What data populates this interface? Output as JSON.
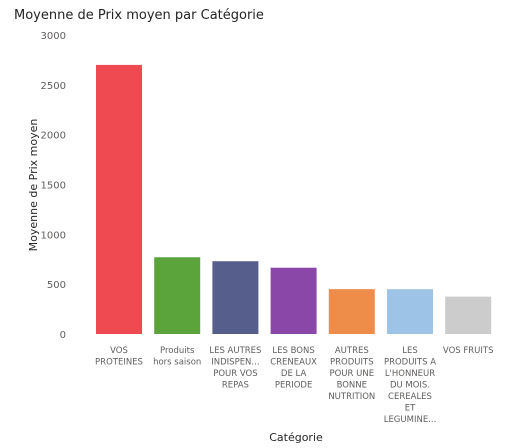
{
  "chart_data": {
    "type": "bar",
    "title": "Moyenne de Prix moyen par Catégorie",
    "xlabel": "Catégorie",
    "ylabel": "Moyenne de Prix moyen",
    "ylim": [
      0,
      3000
    ],
    "yticks": [
      0,
      500,
      1000,
      1500,
      2000,
      2500,
      3000
    ],
    "grid": false,
    "categories": [
      [
        "VOS",
        "PROTEINES"
      ],
      [
        "Produits",
        "hors saison"
      ],
      [
        "LES AUTRES",
        "INDISPEN...",
        "POUR VOS",
        "REPAS"
      ],
      [
        "LES BONS",
        "CRENEAUX",
        "DE LA",
        "PERIODE"
      ],
      [
        "AUTRES",
        "PRODUITS",
        "POUR UNE",
        "BONNE",
        "NUTRITION"
      ],
      [
        "LES",
        "PRODUITS A",
        "L'HONNEUR",
        "DU MOIS.",
        "CEREALES",
        "ET",
        "LEGUMINE..."
      ],
      [
        "VOS FRUITS"
      ]
    ],
    "values": [
      2700,
      770,
      730,
      665,
      450,
      450,
      375
    ],
    "colors": [
      "#EF4A52",
      "#5BA33B",
      "#565E8C",
      "#8B47A8",
      "#EE8C4A",
      "#9DC3E6",
      "#CCCCCC"
    ]
  }
}
